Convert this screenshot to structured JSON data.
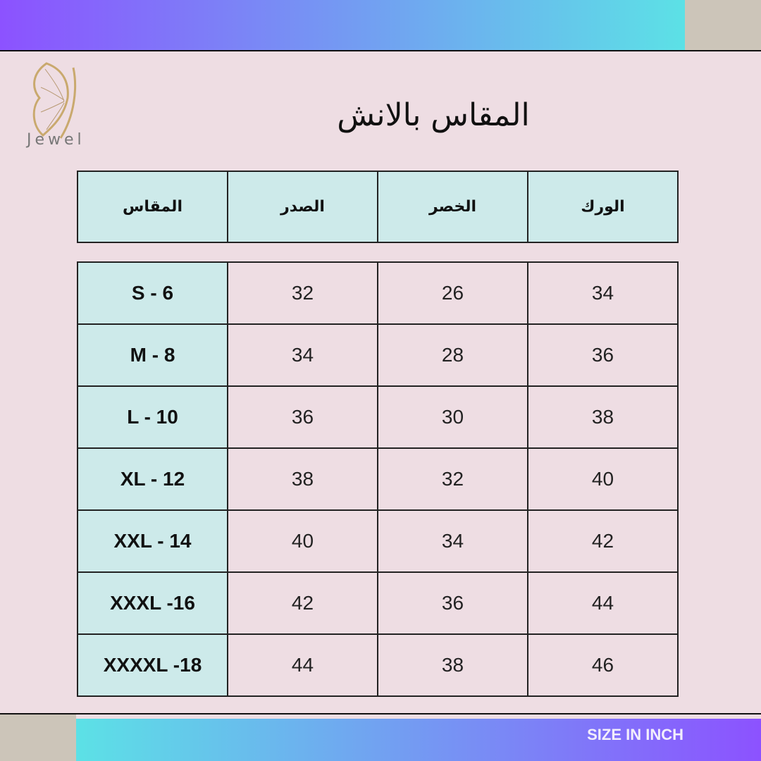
{
  "brand": {
    "name": "Jewel",
    "logo_icon": "butterfly-icon",
    "logo_color": "#c9a96e"
  },
  "title": "المقاس بالانش",
  "colors": {
    "background": "#eedde3",
    "header_cell": "#cdeaea",
    "gradient_start": "#8c52ff",
    "gradient_end": "#5ce1e6",
    "corner": "#ccc5b9"
  },
  "table": {
    "headers": [
      "المقاس",
      "الصدر",
      "الخصر",
      "الورك"
    ],
    "rows": [
      [
        "S - 6",
        "32",
        "26",
        "34"
      ],
      [
        "M - 8",
        "34",
        "28",
        "36"
      ],
      [
        "L - 10",
        "36",
        "30",
        "38"
      ],
      [
        "XL - 12",
        "38",
        "32",
        "40"
      ],
      [
        "XXL - 14",
        "40",
        "34",
        "42"
      ],
      [
        "XXXL -16",
        "42",
        "36",
        "44"
      ],
      [
        "XXXXL -18",
        "44",
        "38",
        "46"
      ]
    ]
  },
  "footer": {
    "label": "SIZE IN INCH"
  }
}
